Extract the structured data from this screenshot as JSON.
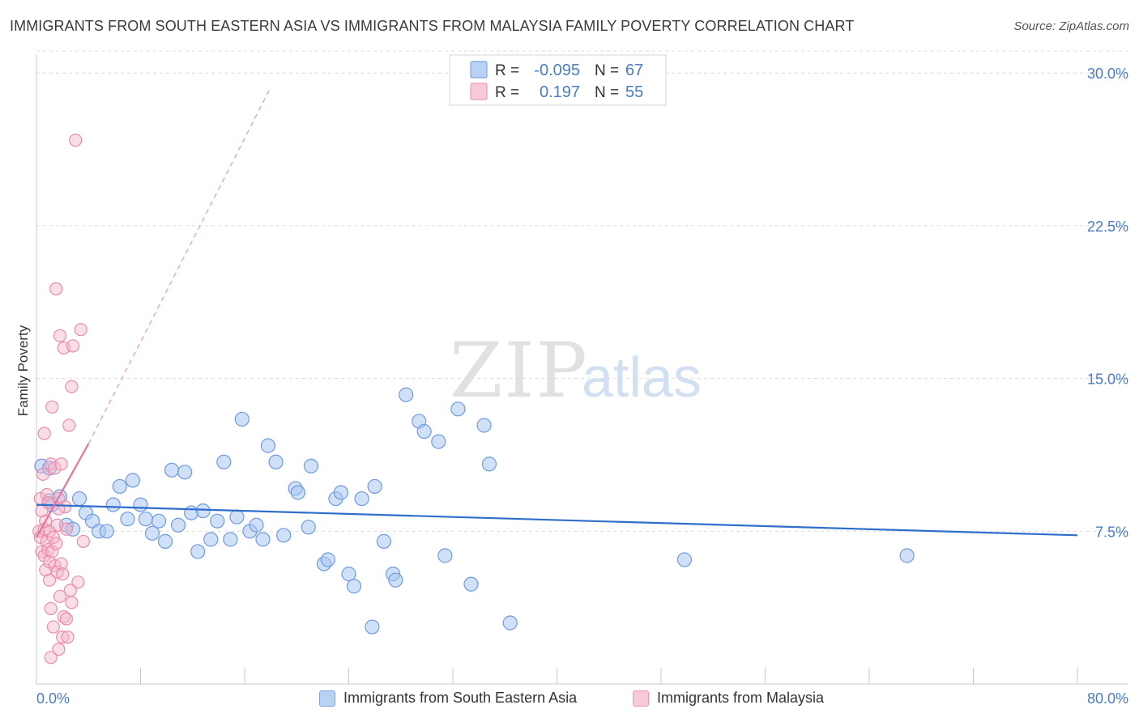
{
  "title": "IMMIGRANTS FROM SOUTH EASTERN ASIA VS IMMIGRANTS FROM MALAYSIA FAMILY POVERTY CORRELATION CHART",
  "source": "Source: ZipAtlas.com",
  "watermark": {
    "zip": "ZIP",
    "atlas": "atlas"
  },
  "colors": {
    "blue_fill": "#a9c6f0",
    "blue_stroke": "#6f9be0",
    "blue_line": "#2f6fcc",
    "pink_fill": "#f5b6c9",
    "pink_stroke": "#ec8caa",
    "pink_line": "#e8739a",
    "axis_text": "#4a7cc9",
    "grid": "#dcdcdc"
  },
  "chart_data": {
    "type": "scatter",
    "title": "IMMIGRANTS FROM SOUTH EASTERN ASIA VS IMMIGRANTS FROM MALAYSIA FAMILY POVERTY CORRELATION CHART",
    "xlabel": "",
    "ylabel": "Family Poverty",
    "xlim": [
      0,
      80
    ],
    "ylim": [
      0,
      31.2
    ],
    "x_tick_labels": [
      "0.0%",
      "80.0%"
    ],
    "y_ticks": [
      7.5,
      15.0,
      22.5,
      30.0
    ],
    "y_tick_labels": [
      "7.5%",
      "15.0%",
      "22.5%",
      "30.0%"
    ],
    "legend": {
      "rows": [
        {
          "r_label": "R =",
          "r_value": "-0.095",
          "n_label": "N =",
          "n_value": "67"
        },
        {
          "r_label": "R =",
          "r_value": "0.197",
          "n_label": "N =",
          "n_value": "55"
        }
      ]
    },
    "series": [
      {
        "name": "Immigrants from South Eastern Asia",
        "color": "blue",
        "trend": {
          "x0": 0,
          "y0": 8.8,
          "x1": 80,
          "y1": 7.3
        },
        "points": [
          [
            0.4,
            10.7
          ],
          [
            1.0,
            9.0
          ],
          [
            1.2,
            8.8
          ],
          [
            1.8,
            9.2
          ],
          [
            2.3,
            7.8
          ],
          [
            2.8,
            7.6
          ],
          [
            3.3,
            9.1
          ],
          [
            3.8,
            8.4
          ],
          [
            4.3,
            8.0
          ],
          [
            4.8,
            7.5
          ],
          [
            5.4,
            7.5
          ],
          [
            5.9,
            8.8
          ],
          [
            6.4,
            9.7
          ],
          [
            7.0,
            8.1
          ],
          [
            7.4,
            10.0
          ],
          [
            8.0,
            8.8
          ],
          [
            8.4,
            8.1
          ],
          [
            8.9,
            7.4
          ],
          [
            9.4,
            8.0
          ],
          [
            9.9,
            7.0
          ],
          [
            10.4,
            10.5
          ],
          [
            10.9,
            7.8
          ],
          [
            11.4,
            10.4
          ],
          [
            11.9,
            8.4
          ],
          [
            12.4,
            6.5
          ],
          [
            12.8,
            8.5
          ],
          [
            13.4,
            7.1
          ],
          [
            13.9,
            8.0
          ],
          [
            14.4,
            10.9
          ],
          [
            14.9,
            7.1
          ],
          [
            15.4,
            8.2
          ],
          [
            15.8,
            13.0
          ],
          [
            16.4,
            7.5
          ],
          [
            16.9,
            7.8
          ],
          [
            17.4,
            7.1
          ],
          [
            17.8,
            11.7
          ],
          [
            18.4,
            10.9
          ],
          [
            19.0,
            7.3
          ],
          [
            19.9,
            9.6
          ],
          [
            20.1,
            9.4
          ],
          [
            20.9,
            7.7
          ],
          [
            21.1,
            10.7
          ],
          [
            22.1,
            5.9
          ],
          [
            22.4,
            6.1
          ],
          [
            23.0,
            9.1
          ],
          [
            23.4,
            9.4
          ],
          [
            24.0,
            5.4
          ],
          [
            24.4,
            4.8
          ],
          [
            25.0,
            9.1
          ],
          [
            25.8,
            2.8
          ],
          [
            26.0,
            9.7
          ],
          [
            26.7,
            7.0
          ],
          [
            27.4,
            5.4
          ],
          [
            27.6,
            5.1
          ],
          [
            28.4,
            14.2
          ],
          [
            29.4,
            12.9
          ],
          [
            29.8,
            12.4
          ],
          [
            30.9,
            11.9
          ],
          [
            31.4,
            6.3
          ],
          [
            32.4,
            13.5
          ],
          [
            33.4,
            4.9
          ],
          [
            34.4,
            12.7
          ],
          [
            34.8,
            10.8
          ],
          [
            36.4,
            3.0
          ],
          [
            49.8,
            6.1
          ],
          [
            66.9,
            6.3
          ],
          [
            1.0,
            10.6
          ]
        ]
      },
      {
        "name": "Immigrants from Malaysia",
        "color": "pink",
        "trend": {
          "x0": 0,
          "y0": 7.2,
          "x1": 4.0,
          "y1": 11.8
        },
        "extended_trend": {
          "x0": 4.0,
          "y0": 11.8,
          "x1": 18.0,
          "y1": 29.3
        },
        "points": [
          [
            0.2,
            7.5
          ],
          [
            0.3,
            7.2
          ],
          [
            0.3,
            9.1
          ],
          [
            0.4,
            6.5
          ],
          [
            0.4,
            8.5
          ],
          [
            0.5,
            10.3
          ],
          [
            0.6,
            6.3
          ],
          [
            0.6,
            7.6
          ],
          [
            0.7,
            5.6
          ],
          [
            0.7,
            8.0
          ],
          [
            0.8,
            7.0
          ],
          [
            0.8,
            9.3
          ],
          [
            0.9,
            6.6
          ],
          [
            0.9,
            8.9
          ],
          [
            1.0,
            5.1
          ],
          [
            1.0,
            6.0
          ],
          [
            1.0,
            7.5
          ],
          [
            1.1,
            3.7
          ],
          [
            1.1,
            10.8
          ],
          [
            1.2,
            6.5
          ],
          [
            1.2,
            13.6
          ],
          [
            1.3,
            2.8
          ],
          [
            1.3,
            7.2
          ],
          [
            1.4,
            5.8
          ],
          [
            1.4,
            10.6
          ],
          [
            1.5,
            6.9
          ],
          [
            1.5,
            19.4
          ],
          [
            1.6,
            5.5
          ],
          [
            1.6,
            7.8
          ],
          [
            1.7,
            1.7
          ],
          [
            1.7,
            9.1
          ],
          [
            1.8,
            17.1
          ],
          [
            1.8,
            4.3
          ],
          [
            1.9,
            5.9
          ],
          [
            1.9,
            10.8
          ],
          [
            2.0,
            5.4
          ],
          [
            2.0,
            2.3
          ],
          [
            2.1,
            16.5
          ],
          [
            2.1,
            3.3
          ],
          [
            2.2,
            8.7
          ],
          [
            2.3,
            3.2
          ],
          [
            2.3,
            7.6
          ],
          [
            2.4,
            2.3
          ],
          [
            2.5,
            12.7
          ],
          [
            2.6,
            4.6
          ],
          [
            2.7,
            14.6
          ],
          [
            2.7,
            4.0
          ],
          [
            2.8,
            16.6
          ],
          [
            3.0,
            26.7
          ],
          [
            3.2,
            5.0
          ],
          [
            3.4,
            17.4
          ],
          [
            3.6,
            7.0
          ],
          [
            0.6,
            12.3
          ],
          [
            1.1,
            1.3
          ],
          [
            1.7,
            8.6
          ]
        ]
      }
    ],
    "bottom_legend": [
      "Immigrants from South Eastern Asia",
      "Immigrants from Malaysia"
    ]
  }
}
